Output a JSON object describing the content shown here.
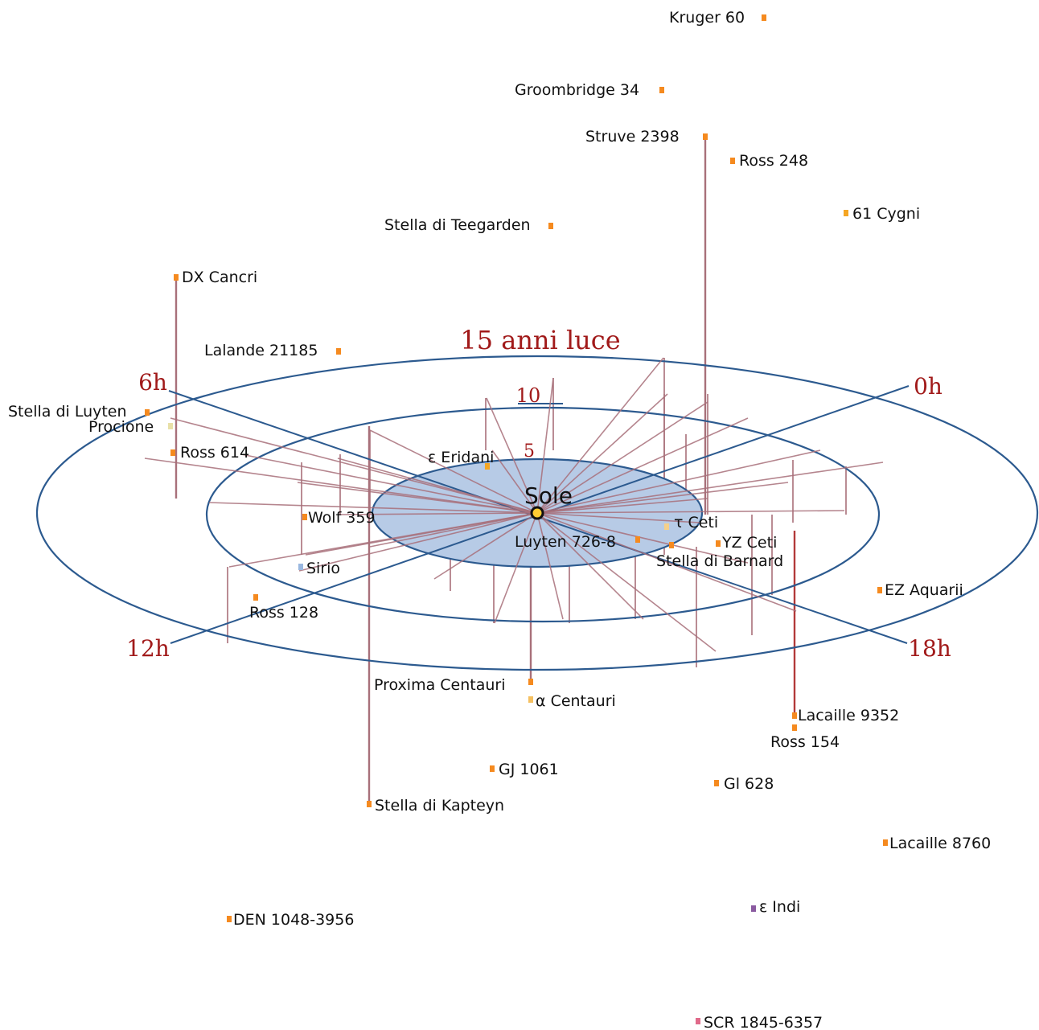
{
  "sun": {
    "label": "Sole",
    "color": "#ffcc33"
  },
  "rings": [
    {
      "label": "5",
      "fill": "#b7cbe6"
    },
    {
      "label": "10",
      "fill": "none"
    },
    {
      "label": "15 anni luce",
      "fill": "none"
    }
  ],
  "hour_labels": [
    "0h",
    "6h",
    "12h",
    "18h"
  ],
  "colors": {
    "ring_stroke": "#2c5a8f",
    "stem": "#a8707a",
    "stem_strong": "#b33a3a",
    "label_red": "#a11a1a",
    "star_orange": "#f58a1f"
  },
  "stars": [
    {
      "name": "Kruger 60",
      "color": "#f58a1f"
    },
    {
      "name": "Groombridge 34",
      "color": "#f58a1f"
    },
    {
      "name": "Struve 2398",
      "color": "#f58a1f"
    },
    {
      "name": "Ross 248",
      "color": "#f58a1f"
    },
    {
      "name": "61 Cygni",
      "color": "#f5a623"
    },
    {
      "name": "Stella di Teegarden",
      "color": "#f58a1f"
    },
    {
      "name": "DX Cancri",
      "color": "#f58a1f"
    },
    {
      "name": "Lalande 21185",
      "color": "#f58a1f"
    },
    {
      "name": "Stella di Luyten",
      "color": "#f58a1f"
    },
    {
      "name": "Procione",
      "color": "#e8e0a8"
    },
    {
      "name": "Ross 614",
      "color": "#f58a1f"
    },
    {
      "name": "ε Eridani",
      "color": "#f5a623"
    },
    {
      "name": "Wolf 359",
      "color": "#f58a1f"
    },
    {
      "name": "Sirio",
      "color": "#9ab8e0"
    },
    {
      "name": "Ross 128",
      "color": "#f58a1f"
    },
    {
      "name": "Luyten 726-8",
      "color": "#f58a1f"
    },
    {
      "name": "τ Ceti",
      "color": "#f5d08a"
    },
    {
      "name": "YZ Ceti",
      "color": "#f58a1f"
    },
    {
      "name": "Stella di Barnard",
      "color": "#f58a1f"
    },
    {
      "name": "EZ Aquarii",
      "color": "#f58a1f"
    },
    {
      "name": "Proxima Centauri",
      "color": "#f58a1f"
    },
    {
      "name": "α Centauri",
      "color": "#f5c060"
    },
    {
      "name": "Lacaille 9352",
      "color": "#f58a1f"
    },
    {
      "name": "Ross 154",
      "color": "#f58a1f"
    },
    {
      "name": "GJ 1061",
      "color": "#f58a1f"
    },
    {
      "name": "Gl 628",
      "color": "#f58a1f"
    },
    {
      "name": "Stella di Kapteyn",
      "color": "#f58a1f"
    },
    {
      "name": "Lacaille 8760",
      "color": "#f58a1f"
    },
    {
      "name": "ε Indi",
      "color": "#8a5aa0"
    },
    {
      "name": "DEN 1048-3956",
      "color": "#f58a1f"
    },
    {
      "name": "SCR 1845-6357",
      "color": "#e06a8a"
    }
  ]
}
